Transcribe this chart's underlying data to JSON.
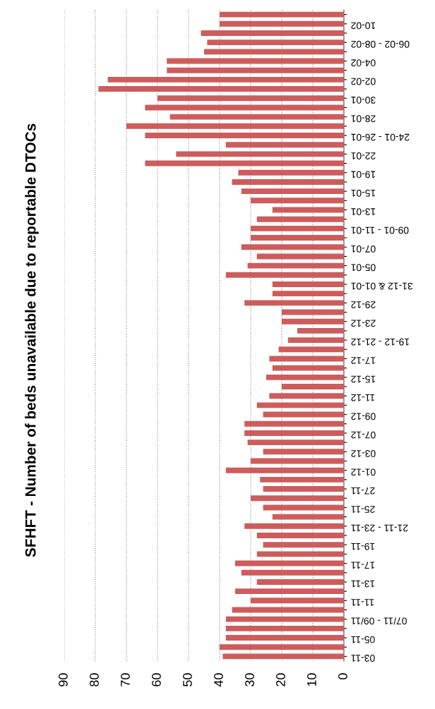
{
  "chart_data": {
    "type": "bar",
    "orientation": "horizontal",
    "title": "SFHFT - Number of beds unavailable due to reportable DTOCs",
    "categories": [
      null,
      "10-02",
      null,
      "06-02 - 08-02",
      null,
      "04-02",
      null,
      "02-02",
      null,
      "30-01",
      null,
      "28-01",
      null,
      "24-01 - 26-01",
      null,
      "22-01",
      null,
      "19-01",
      null,
      "15-01",
      null,
      "13-01",
      null,
      "09-01 - 11-01",
      null,
      "07-01",
      null,
      "05-01",
      null,
      "31-12 & 01-01",
      null,
      "29-12",
      null,
      "23-12",
      null,
      "19-12 - 21-12",
      null,
      "17-12",
      null,
      "15-12",
      null,
      "11-12",
      null,
      "09-12",
      null,
      "07-12",
      null,
      "03-12",
      null,
      "01-12",
      null,
      "27-11",
      null,
      "25-11",
      null,
      "21-11 - 23-11",
      null,
      "19-11",
      null,
      "17-11",
      null,
      "13-11",
      null,
      "11-11",
      null,
      "07/11 - 09/11",
      null,
      "05-11",
      null,
      "03-11"
    ],
    "values": [
      40,
      40,
      46,
      44,
      45,
      57,
      57,
      76,
      79,
      60,
      64,
      56,
      70,
      64,
      38,
      54,
      64,
      34,
      36,
      33,
      30,
      23,
      28,
      30,
      30,
      33,
      28,
      31,
      38,
      23,
      23,
      32,
      20,
      20,
      15,
      18,
      21,
      24,
      23,
      25,
      20,
      24,
      28,
      26,
      32,
      32,
      31,
      26,
      30,
      38,
      27,
      26,
      30,
      26,
      23,
      32,
      28,
      26,
      28,
      35,
      33,
      28,
      35,
      30,
      36,
      38,
      38,
      38,
      40,
      39
    ],
    "color": "#cd5c5c",
    "xlim": [
      90,
      0
    ],
    "xticks": [
      90,
      80,
      70,
      60,
      50,
      40,
      30,
      20,
      10,
      0
    ],
    "grid": "x"
  }
}
